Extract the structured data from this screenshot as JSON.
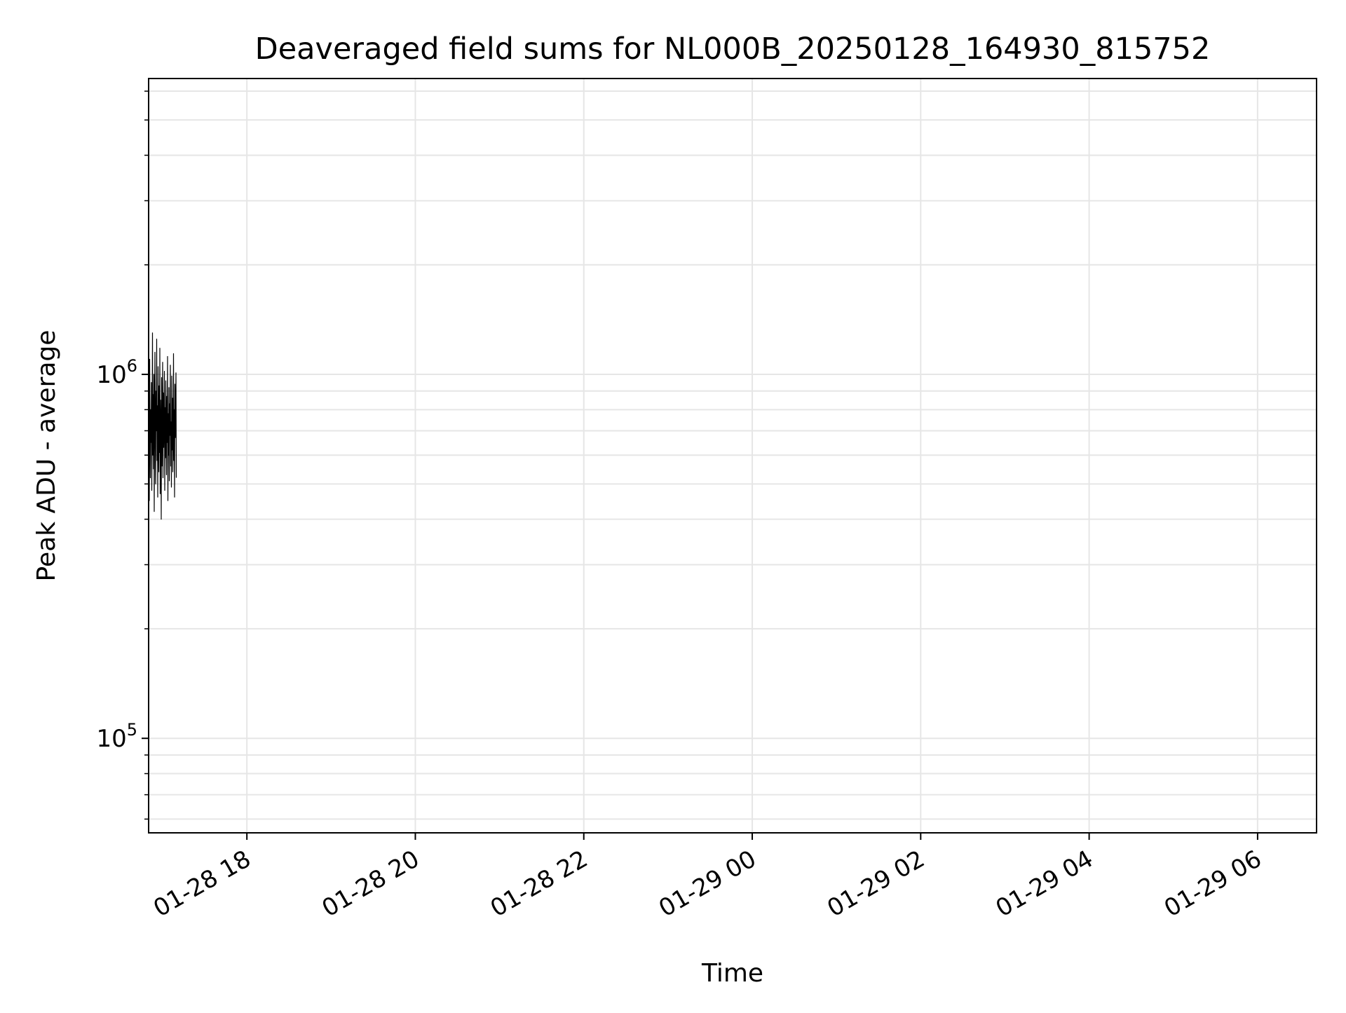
{
  "chart_data": {
    "type": "line",
    "title": "Deaveraged field sums for NL000B_20250128_164930_815752",
    "xlabel": "Time",
    "ylabel": "Peak ADU - average",
    "x_is_time": true,
    "xlim": [
      "2025-01-28 16:50",
      "2025-01-29 06:42"
    ],
    "ylim": [
      55000,
      6500000
    ],
    "y_scale": "log",
    "x_ticks": [
      {
        "label": "01-28 18",
        "value": "2025-01-28 18:00"
      },
      {
        "label": "01-28 20",
        "value": "2025-01-28 20:00"
      },
      {
        "label": "01-28 22",
        "value": "2025-01-28 22:00"
      },
      {
        "label": "01-29 00",
        "value": "2025-01-29 00:00"
      },
      {
        "label": "01-29 02",
        "value": "2025-01-29 02:00"
      },
      {
        "label": "01-29 04",
        "value": "2025-01-29 04:00"
      },
      {
        "label": "01-29 06",
        "value": "2025-01-29 06:00"
      }
    ],
    "y_ticks": [
      {
        "base": "10",
        "exp": "5",
        "value": 100000
      },
      {
        "base": "10",
        "exp": "6",
        "value": 1000000
      }
    ],
    "grid": true,
    "line_color": "#000000",
    "grid_color": "#e6e6e6",
    "series": [
      {
        "name": "",
        "x_start": "2025-01-28 16:50",
        "step_seconds": 15,
        "values": [
          600000,
          900000,
          450000,
          1100000,
          700000,
          520000,
          800000,
          650000,
          950000,
          480000,
          720000,
          1300000,
          600000,
          880000,
          550000,
          1000000,
          420000,
          780000,
          1150000,
          640000,
          500000,
          900000,
          700000,
          1250000,
          580000,
          820000,
          460000,
          1050000,
          690000,
          540000,
          930000,
          610000,
          1180000,
          470000,
          850000,
          720000,
          400000,
          980000,
          560000,
          760000,
          1080000,
          520000,
          890000,
          630000,
          740000,
          1020000,
          480000,
          810000,
          590000,
          960000,
          700000,
          530000,
          870000,
          650000,
          1120000,
          450000,
          780000,
          600000,
          920000,
          510000,
          830000,
          680000,
          1060000,
          560000,
          740000,
          490000,
          990000,
          620000,
          860000,
          540000,
          710000,
          1140000,
          580000,
          800000,
          460000,
          940000,
          670000,
          750000,
          1010000,
          520000
        ]
      }
    ]
  }
}
